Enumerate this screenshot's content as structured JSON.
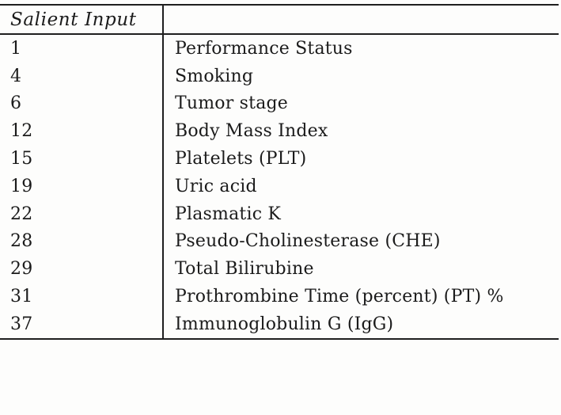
{
  "page": {
    "background_color": "#fdfdfc",
    "text_color": "#1b1b1b",
    "rule_color": "#1f1f1f"
  },
  "table": {
    "header": {
      "col1": "Salient Input",
      "col2": ""
    },
    "rows": [
      {
        "id": "1",
        "label": "Performance Status"
      },
      {
        "id": "4",
        "label": "Smoking"
      },
      {
        "id": "6",
        "label": "Tumor stage"
      },
      {
        "id": "12",
        "label": "Body Mass Index"
      },
      {
        "id": "15",
        "label": "Platelets (PLT)"
      },
      {
        "id": "19",
        "label": "Uric acid"
      },
      {
        "id": "22",
        "label": "Plasmatic K"
      },
      {
        "id": "28",
        "label": "Pseudo-Cholinesterase (CHE)"
      },
      {
        "id": "29",
        "label": "Total Bilirubine"
      },
      {
        "id": "31",
        "label": "Prothrombine Time (percent) (PT) %"
      },
      {
        "id": "37",
        "label": "Immunoglobulin G (IgG)"
      }
    ]
  }
}
